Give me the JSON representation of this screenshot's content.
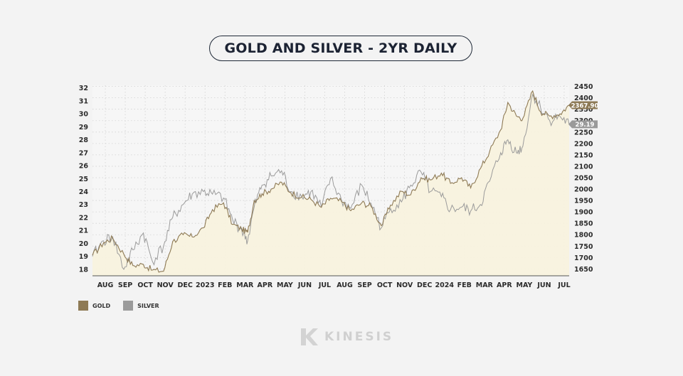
{
  "title": "GOLD AND SILVER - 2YR DAILY",
  "legend": {
    "gold_label": "GOLD",
    "silver_label": "SILVER"
  },
  "brand": {
    "name": "KINESIS",
    "logo": "kinesis-k-logo"
  },
  "colors": {
    "gold": "#8e7a55",
    "silver": "#9b9b9b",
    "fill": "#f8f2de",
    "gold_badge": "#8d7a56",
    "silver_badge": "#9a9a9a"
  },
  "chart_data": {
    "type": "line",
    "title": "GOLD AND SILVER - 2YR DAILY",
    "x_labels": [
      "AUG",
      "SEP",
      "OCT",
      "NOV",
      "DEC",
      "2023",
      "FEB",
      "MAR",
      "APR",
      "MAY",
      "JUN",
      "JUL",
      "AUG",
      "SEP",
      "OCT",
      "NOV",
      "DEC",
      "2024",
      "FEB",
      "MAR",
      "APR",
      "MAY",
      "JUN",
      "JUL"
    ],
    "left_axis": {
      "series": "SILVER",
      "ticks": [
        18,
        19,
        20,
        21,
        22,
        23,
        24,
        25,
        26,
        27,
        28,
        29,
        30,
        31,
        32
      ],
      "range": [
        17.5,
        32.2
      ]
    },
    "right_axis": {
      "series": "GOLD",
      "ticks": [
        1650,
        1700,
        1750,
        1800,
        1850,
        1900,
        1950,
        2000,
        2050,
        2100,
        2150,
        2200,
        2250,
        2300,
        2350,
        2400,
        2450
      ],
      "range": [
        1620,
        2455
      ]
    },
    "grid": true,
    "legend_position": "bottom-left",
    "series": [
      {
        "name": "GOLD",
        "axis": "right",
        "last_value_label": "2367.90",
        "points": [
          [
            "2022-07-15",
            1710
          ],
          [
            "2022-08-01",
            1765
          ],
          [
            "2022-08-15",
            1785
          ],
          [
            "2022-09-01",
            1715
          ],
          [
            "2022-09-15",
            1665
          ],
          [
            "2022-10-01",
            1670
          ],
          [
            "2022-10-15",
            1645
          ],
          [
            "2022-11-01",
            1640
          ],
          [
            "2022-11-15",
            1770
          ],
          [
            "2022-12-01",
            1800
          ],
          [
            "2022-12-15",
            1790
          ],
          [
            "2023-01-01",
            1830
          ],
          [
            "2023-01-15",
            1910
          ],
          [
            "2023-02-01",
            1940
          ],
          [
            "2023-02-15",
            1845
          ],
          [
            "2023-03-01",
            1825
          ],
          [
            "2023-03-10",
            1810
          ],
          [
            "2023-03-20",
            1950
          ],
          [
            "2023-04-01",
            1980
          ],
          [
            "2023-04-15",
            2000
          ],
          [
            "2023-05-01",
            2030
          ],
          [
            "2023-05-15",
            1985
          ],
          [
            "2023-06-01",
            1965
          ],
          [
            "2023-06-15",
            1955
          ],
          [
            "2023-07-01",
            1920
          ],
          [
            "2023-07-15",
            1960
          ],
          [
            "2023-08-01",
            1945
          ],
          [
            "2023-08-15",
            1905
          ],
          [
            "2023-09-01",
            1940
          ],
          [
            "2023-09-15",
            1925
          ],
          [
            "2023-10-01",
            1840
          ],
          [
            "2023-10-15",
            1930
          ],
          [
            "2023-11-01",
            1990
          ],
          [
            "2023-11-15",
            1975
          ],
          [
            "2023-12-01",
            2050
          ],
          [
            "2023-12-15",
            2040
          ],
          [
            "2024-01-01",
            2070
          ],
          [
            "2024-01-15",
            2025
          ],
          [
            "2024-02-01",
            2050
          ],
          [
            "2024-02-15",
            2005
          ],
          [
            "2024-03-01",
            2090
          ],
          [
            "2024-03-15",
            2165
          ],
          [
            "2024-04-01",
            2260
          ],
          [
            "2024-04-12",
            2380
          ],
          [
            "2024-04-25",
            2320
          ],
          [
            "2024-05-05",
            2310
          ],
          [
            "2024-05-20",
            2430
          ],
          [
            "2024-06-01",
            2340
          ],
          [
            "2024-06-15",
            2320
          ],
          [
            "2024-07-01",
            2330
          ],
          [
            "2024-07-15",
            2367.9
          ]
        ]
      },
      {
        "name": "SILVER",
        "axis": "left",
        "last_value_label": "29.19",
        "points": [
          [
            "2022-07-15",
            19.0
          ],
          [
            "2022-08-01",
            20.2
          ],
          [
            "2022-08-15",
            20.5
          ],
          [
            "2022-09-01",
            18.0
          ],
          [
            "2022-09-15",
            19.5
          ],
          [
            "2022-10-01",
            20.8
          ],
          [
            "2022-10-15",
            18.6
          ],
          [
            "2022-11-01",
            19.8
          ],
          [
            "2022-11-15",
            22.0
          ],
          [
            "2022-12-01",
            23.0
          ],
          [
            "2022-12-15",
            23.8
          ],
          [
            "2023-01-01",
            24.0
          ],
          [
            "2023-01-15",
            23.8
          ],
          [
            "2023-02-01",
            23.5
          ],
          [
            "2023-02-15",
            21.8
          ],
          [
            "2023-03-01",
            21.0
          ],
          [
            "2023-03-10",
            20.2
          ],
          [
            "2023-03-20",
            22.8
          ],
          [
            "2023-04-01",
            24.5
          ],
          [
            "2023-04-15",
            25.2
          ],
          [
            "2023-05-01",
            25.6
          ],
          [
            "2023-05-15",
            24.0
          ],
          [
            "2023-06-01",
            23.6
          ],
          [
            "2023-06-15",
            24.0
          ],
          [
            "2023-07-01",
            22.8
          ],
          [
            "2023-07-15",
            25.0
          ],
          [
            "2023-08-01",
            23.3
          ],
          [
            "2023-08-15",
            22.7
          ],
          [
            "2023-09-01",
            24.5
          ],
          [
            "2023-09-15",
            23.1
          ],
          [
            "2023-10-01",
            21.2
          ],
          [
            "2023-10-15",
            22.7
          ],
          [
            "2023-11-01",
            23.2
          ],
          [
            "2023-11-15",
            24.5
          ],
          [
            "2023-12-01",
            25.5
          ],
          [
            "2023-12-15",
            24.0
          ],
          [
            "2024-01-01",
            23.6
          ],
          [
            "2024-01-15",
            22.6
          ],
          [
            "2024-02-01",
            22.8
          ],
          [
            "2024-02-15",
            22.5
          ],
          [
            "2024-03-01",
            23.0
          ],
          [
            "2024-03-15",
            24.8
          ],
          [
            "2024-04-01",
            27.0
          ],
          [
            "2024-04-12",
            28.0
          ],
          [
            "2024-04-25",
            27.0
          ],
          [
            "2024-05-05",
            27.5
          ],
          [
            "2024-05-20",
            31.5
          ],
          [
            "2024-06-01",
            30.5
          ],
          [
            "2024-06-15",
            29.5
          ],
          [
            "2024-07-01",
            29.8
          ],
          [
            "2024-07-15",
            29.19
          ]
        ]
      }
    ]
  }
}
